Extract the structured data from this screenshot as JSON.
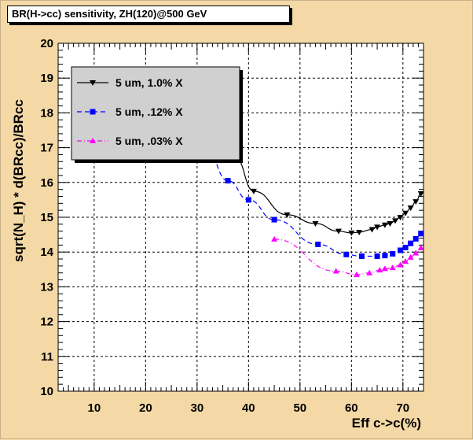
{
  "title": "BR(H->cc) sensitivity, ZH(120)@500 GeV",
  "chart_data": {
    "type": "line",
    "xlabel": "Eff c->c(%)",
    "ylabel": "sqrt(N_H) * d(BRcc)/BRcc",
    "xlim": [
      3,
      74
    ],
    "ylim": [
      10,
      20
    ],
    "xticks": [
      "10",
      "20",
      "30",
      "40",
      "50",
      "60",
      "70"
    ],
    "yticks": [
      "10",
      "11",
      "12",
      "13",
      "14",
      "15",
      "16",
      "17",
      "18",
      "19",
      "20"
    ],
    "grid": true,
    "legend_position": "top-left",
    "series": [
      {
        "name": "5 um, 1.0% X",
        "color": "#000000",
        "marker": "triangle-down",
        "dash": "solid",
        "x": [
          37.5,
          41,
          47.5,
          53,
          57.5,
          60,
          61.5,
          64,
          65,
          66.5,
          67.5,
          68.5,
          69.5,
          70.5,
          71.5,
          72.5,
          73.5
        ],
        "y": [
          16.7,
          15.75,
          15.07,
          14.82,
          14.6,
          14.55,
          14.57,
          14.65,
          14.72,
          14.78,
          14.82,
          14.9,
          15.0,
          15.12,
          15.27,
          15.45,
          15.68
        ]
      },
      {
        "name": "5 um, .12% X",
        "color": "#0000ff",
        "marker": "square",
        "dash": "dashed",
        "x": [
          32,
          36,
          40,
          45,
          53.5,
          59,
          62,
          65,
          66.5,
          68,
          69.5,
          70.5,
          71.5,
          72.5,
          73.5
        ],
        "y": [
          16.85,
          16.05,
          15.5,
          14.93,
          14.22,
          13.93,
          13.88,
          13.88,
          13.9,
          13.95,
          14.05,
          14.13,
          14.25,
          14.38,
          14.53
        ]
      },
      {
        "name": "5 um, .03% X",
        "color": "#ff00ff",
        "marker": "triangle-up",
        "dash": "dashdot",
        "x": [
          45,
          57,
          61,
          63.5,
          65.5,
          66.5,
          68,
          69.5,
          70.5,
          71.5,
          72.5,
          73.5
        ],
        "y": [
          14.37,
          13.45,
          13.35,
          13.4,
          13.48,
          13.52,
          13.55,
          13.63,
          13.73,
          13.85,
          13.97,
          14.12
        ]
      }
    ]
  }
}
